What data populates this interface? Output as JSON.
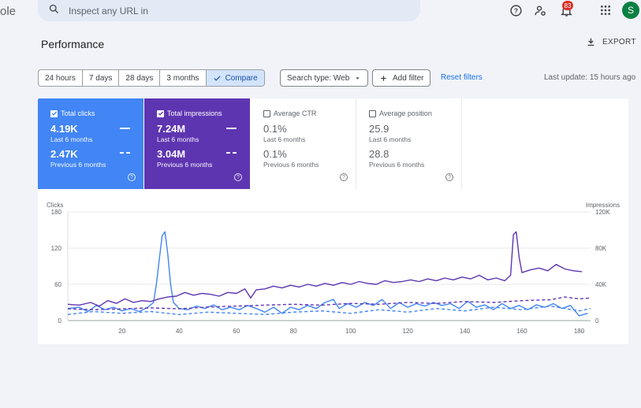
{
  "header": {
    "logo_fragment": "ole",
    "search_placeholder": "Inspect any URL in",
    "notification_count": "83",
    "avatar_initial": "S",
    "icons": [
      "search-icon",
      "help-icon",
      "account-settings-icon",
      "bell-icon",
      "apps-grid-icon"
    ]
  },
  "page": {
    "title": "Performance",
    "export_label": "EXPORT"
  },
  "filters": {
    "ranges": [
      {
        "label": "24 hours",
        "active": false
      },
      {
        "label": "7 days",
        "active": false
      },
      {
        "label": "28 days",
        "active": false
      },
      {
        "label": "3 months",
        "active": false
      },
      {
        "label": "Compare",
        "active": true
      }
    ],
    "search_type": "Search type: Web",
    "add_filter": "Add filter",
    "reset": "Reset filters",
    "last_update": "Last update: 15 hours ago"
  },
  "metrics": {
    "clicks": {
      "label": "Total clicks",
      "checked": true,
      "current": "4.19K",
      "current_period": "Last 6 months",
      "previous": "2.47K",
      "previous_period": "Previous 6 months",
      "color": "#4285f4"
    },
    "impressions": {
      "label": "Total impressions",
      "checked": true,
      "current": "7.24M",
      "current_period": "Last 6 months",
      "previous": "3.04M",
      "previous_period": "Previous 6 months",
      "color": "#5e35b1"
    },
    "ctr": {
      "label": "Average CTR",
      "checked": false,
      "current": "0.1%",
      "current_period": "Last 6 months",
      "previous": "0.1%",
      "previous_period": "Previous 6 months"
    },
    "position": {
      "label": "Average position",
      "checked": false,
      "current": "25.9",
      "current_period": "Last 6 months",
      "previous": "28.8",
      "previous_period": "Previous 6 months"
    }
  },
  "chart_data": {
    "type": "line",
    "ylabel_left": "Clicks",
    "ylabel_right": "Impressions",
    "left_ticks": [
      {
        "v": 0,
        "label": "0"
      },
      {
        "v": 60,
        "label": "60"
      },
      {
        "v": 120,
        "label": "120"
      },
      {
        "v": 180,
        "label": "180"
      }
    ],
    "right_ticks": [
      {
        "v": 0,
        "label": "0"
      },
      {
        "v": 40000,
        "label": "40K"
      },
      {
        "v": 80000,
        "label": "80K"
      },
      {
        "v": 120000,
        "label": "120K"
      }
    ],
    "x_ticks": [
      20,
      40,
      60,
      80,
      100,
      120,
      140,
      160,
      180
    ],
    "xlim": [
      1,
      184
    ],
    "ylim_left": [
      0,
      180
    ],
    "ylim_right": [
      0,
      120000
    ],
    "series": [
      {
        "axis": "left",
        "style": "solid",
        "color": "#4285f4",
        "points": [
          [
            1,
            20
          ],
          [
            5,
            22
          ],
          [
            8,
            15
          ],
          [
            11,
            25
          ],
          [
            14,
            18
          ],
          [
            17,
            22
          ],
          [
            20,
            16
          ],
          [
            23,
            20
          ],
          [
            26,
            15
          ],
          [
            29,
            22
          ],
          [
            31,
            30
          ],
          [
            32,
            60
          ],
          [
            33,
            100
          ],
          [
            34,
            140
          ],
          [
            35,
            147
          ],
          [
            36,
            110
          ],
          [
            37,
            60
          ],
          [
            38,
            30
          ],
          [
            40,
            20
          ],
          [
            43,
            18
          ],
          [
            46,
            24
          ],
          [
            49,
            20
          ],
          [
            52,
            26
          ],
          [
            55,
            18
          ],
          [
            58,
            22
          ],
          [
            61,
            18
          ],
          [
            64,
            25
          ],
          [
            67,
            20
          ],
          [
            70,
            14
          ],
          [
            73,
            22
          ],
          [
            76,
            12
          ],
          [
            79,
            22
          ],
          [
            82,
            18
          ],
          [
            85,
            25
          ],
          [
            88,
            20
          ],
          [
            91,
            30
          ],
          [
            94,
            35
          ],
          [
            96,
            20
          ],
          [
            99,
            28
          ],
          [
            102,
            22
          ],
          [
            105,
            30
          ],
          [
            108,
            25
          ],
          [
            111,
            35
          ],
          [
            114,
            20
          ],
          [
            117,
            30
          ],
          [
            120,
            22
          ],
          [
            123,
            28
          ],
          [
            126,
            24
          ],
          [
            129,
            30
          ],
          [
            132,
            25
          ],
          [
            135,
            28
          ],
          [
            138,
            20
          ],
          [
            141,
            32
          ],
          [
            144,
            22
          ],
          [
            147,
            26
          ],
          [
            150,
            18
          ],
          [
            153,
            28
          ],
          [
            156,
            20
          ],
          [
            159,
            25
          ],
          [
            162,
            18
          ],
          [
            165,
            26
          ],
          [
            168,
            22
          ],
          [
            171,
            28
          ],
          [
            174,
            20
          ],
          [
            177,
            25
          ],
          [
            180,
            8
          ],
          [
            183,
            12
          ]
        ]
      },
      {
        "axis": "left",
        "style": "dashed",
        "color": "#4285f4",
        "points": [
          [
            1,
            10
          ],
          [
            10,
            15
          ],
          [
            20,
            12
          ],
          [
            30,
            15
          ],
          [
            40,
            10
          ],
          [
            50,
            14
          ],
          [
            60,
            12
          ],
          [
            70,
            10
          ],
          [
            80,
            14
          ],
          [
            90,
            16
          ],
          [
            100,
            12
          ],
          [
            110,
            18
          ],
          [
            120,
            14
          ],
          [
            130,
            20
          ],
          [
            140,
            16
          ],
          [
            150,
            22
          ],
          [
            160,
            18
          ],
          [
            170,
            24
          ],
          [
            180,
            16
          ],
          [
            184,
            20
          ]
        ]
      },
      {
        "axis": "right",
        "style": "solid",
        "color": "#5e35b1",
        "points": [
          [
            1,
            18000
          ],
          [
            5,
            17000
          ],
          [
            9,
            20000
          ],
          [
            12,
            16000
          ],
          [
            15,
            22000
          ],
          [
            18,
            19000
          ],
          [
            21,
            24000
          ],
          [
            24,
            20000
          ],
          [
            27,
            22000
          ],
          [
            30,
            21000
          ],
          [
            33,
            24000
          ],
          [
            36,
            26000
          ],
          [
            39,
            27000
          ],
          [
            42,
            31000
          ],
          [
            45,
            28000
          ],
          [
            48,
            30000
          ],
          [
            51,
            29000
          ],
          [
            54,
            27000
          ],
          [
            57,
            31000
          ],
          [
            60,
            30000
          ],
          [
            63,
            35000
          ],
          [
            65,
            25000
          ],
          [
            67,
            34000
          ],
          [
            70,
            35000
          ],
          [
            73,
            38000
          ],
          [
            76,
            36000
          ],
          [
            79,
            39000
          ],
          [
            82,
            37000
          ],
          [
            85,
            40000
          ],
          [
            88,
            38000
          ],
          [
            91,
            41000
          ],
          [
            94,
            39000
          ],
          [
            97,
            42000
          ],
          [
            100,
            40000
          ],
          [
            103,
            43000
          ],
          [
            106,
            41000
          ],
          [
            109,
            40000
          ],
          [
            112,
            44000
          ],
          [
            115,
            42000
          ],
          [
            118,
            43000
          ],
          [
            121,
            45000
          ],
          [
            124,
            43000
          ],
          [
            127,
            46000
          ],
          [
            130,
            44000
          ],
          [
            133,
            47000
          ],
          [
            136,
            45000
          ],
          [
            139,
            48000
          ],
          [
            142,
            46000
          ],
          [
            145,
            50000
          ],
          [
            148,
            45000
          ],
          [
            151,
            47000
          ],
          [
            154,
            44000
          ],
          [
            156,
            50000
          ],
          [
            157,
            95000
          ],
          [
            158,
            98000
          ],
          [
            159,
            70000
          ],
          [
            160,
            53000
          ],
          [
            163,
            56000
          ],
          [
            166,
            58000
          ],
          [
            169,
            55000
          ],
          [
            172,
            62000
          ],
          [
            175,
            57000
          ],
          [
            178,
            55000
          ],
          [
            181,
            54000
          ]
        ]
      },
      {
        "axis": "right",
        "style": "dashed",
        "color": "#5e35b1",
        "points": [
          [
            1,
            13000
          ],
          [
            10,
            12000
          ],
          [
            20,
            13000
          ],
          [
            30,
            14000
          ],
          [
            40,
            13000
          ],
          [
            50,
            15000
          ],
          [
            60,
            16000
          ],
          [
            70,
            17000
          ],
          [
            80,
            18000
          ],
          [
            90,
            17000
          ],
          [
            100,
            19000
          ],
          [
            110,
            18000
          ],
          [
            120,
            20000
          ],
          [
            130,
            19000
          ],
          [
            140,
            21000
          ],
          [
            150,
            20000
          ],
          [
            160,
            22000
          ],
          [
            170,
            23000
          ],
          [
            175,
            26000
          ],
          [
            180,
            24000
          ],
          [
            184,
            25000
          ]
        ]
      }
    ]
  }
}
